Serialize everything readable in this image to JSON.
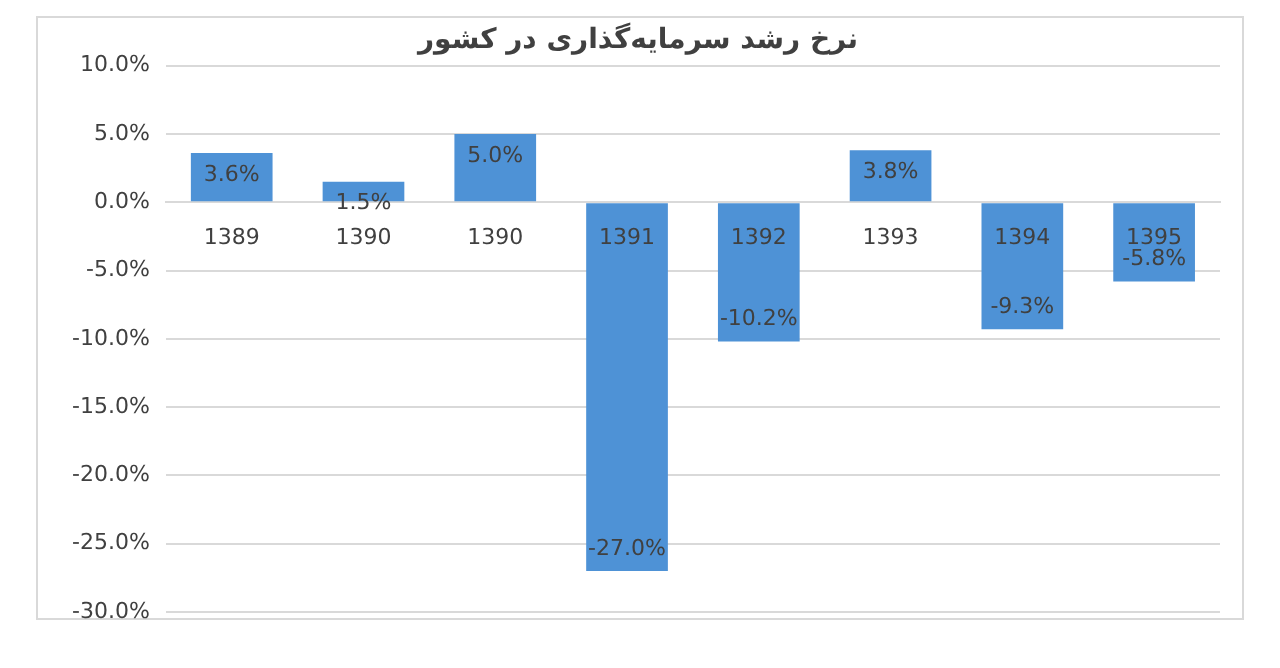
{
  "chart_data": {
    "type": "bar",
    "title": "نرخ رشد سرمایه‌گذاری در کشور",
    "categories": [
      "1389",
      "1390",
      "1390",
      "1391",
      "1392",
      "1393",
      "1394",
      "1395"
    ],
    "values": [
      3.6,
      1.5,
      5.0,
      -27.0,
      -10.2,
      3.8,
      -9.3,
      -5.8
    ],
    "value_labels": [
      "3.6%",
      "1.5%",
      "5.0%",
      "-27.0%",
      "-10.2%",
      "3.8%",
      "-9.3%",
      "-5.8%"
    ],
    "color": "#4e92d6",
    "ylim": [
      -30,
      10
    ],
    "yticks": [
      {
        "value": -30,
        "label": "-30.0%"
      },
      {
        "value": -25,
        "label": "-25.0%"
      },
      {
        "value": -20,
        "label": "-20.0%"
      },
      {
        "value": -15,
        "label": "-15.0%"
      },
      {
        "value": -10,
        "label": "-10.0%"
      },
      {
        "value": -5,
        "label": "-5.0%"
      },
      {
        "value": 0,
        "label": "0.0%"
      },
      {
        "value": 5,
        "label": "5.0%"
      },
      {
        "value": 10,
        "label": "10.0%"
      }
    ],
    "grid": "y",
    "legend": false
  }
}
